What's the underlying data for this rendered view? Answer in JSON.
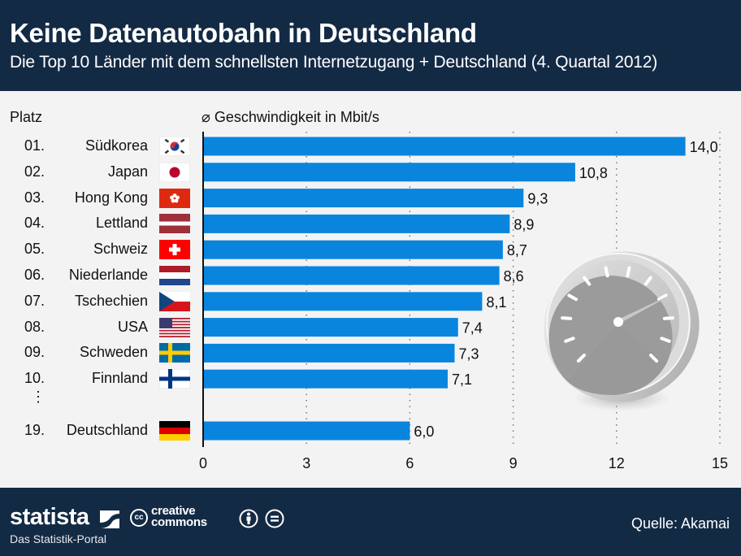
{
  "header": {
    "title": "Keine Datenautobahn in Deutschland",
    "subtitle": "Die Top 10 Länder mit dem schnellsten Internetzugang + Deutschland (4. Quartal 2012)"
  },
  "labels": {
    "platz": "Platz",
    "ellipsis": "⋮"
  },
  "footer": {
    "brand": "statista",
    "tagline": "Das Statistik-Portal",
    "cc_symbol": "cc",
    "cc_text": "creative\ncommons",
    "source": "Quelle: Akamai"
  },
  "colors": {
    "bar": "#0a85dd",
    "header_bg": "#132a45",
    "background": "#f3f3f3"
  },
  "chart_data": {
    "type": "bar",
    "orientation": "horizontal",
    "title": "Keine Datenautobahn in Deutschland",
    "subtitle": "Die Top 10 Länder mit dem schnellsten Internetzugang + Deutschland (4. Quartal 2012)",
    "xlabel": "⌀ Geschwindigkeit in Mbit/s",
    "ylabel": "Platz",
    "xlim": [
      0,
      15
    ],
    "xticks": [
      0,
      3,
      6,
      9,
      12,
      15
    ],
    "grid": "vertical dotted",
    "categories": [
      "Südkorea",
      "Japan",
      "Hong Kong",
      "Lettland",
      "Schweiz",
      "Niederlande",
      "Tschechien",
      "USA",
      "Schweden",
      "Finnland",
      "Deutschland"
    ],
    "ranks": [
      "01.",
      "02.",
      "03.",
      "04.",
      "05.",
      "06.",
      "07.",
      "08.",
      "09.",
      "10.",
      "19."
    ],
    "flags": [
      "south-korea",
      "japan",
      "hong-kong",
      "latvia",
      "switzerland",
      "netherlands",
      "czech-republic",
      "usa",
      "sweden",
      "finland",
      "germany"
    ],
    "values": [
      14.0,
      10.8,
      9.3,
      8.9,
      8.7,
      8.6,
      8.1,
      7.4,
      7.3,
      7.1,
      6.0
    ],
    "value_labels": [
      "14,0",
      "10,8",
      "9,3",
      "8,9",
      "8,7",
      "8,6",
      "8,1",
      "7,4",
      "7,3",
      "7,1",
      "6,0"
    ],
    "source": "Akamai"
  }
}
